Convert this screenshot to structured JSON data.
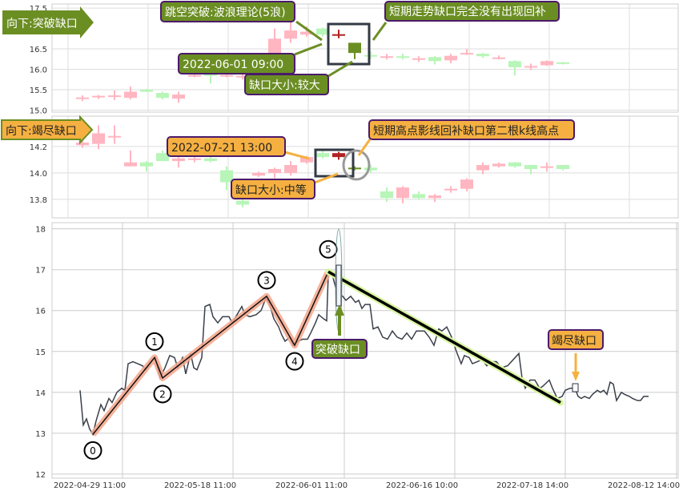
{
  "chart_data": [
    {
      "type": "candlestick",
      "panel": "top",
      "yticks": [
        "15.0",
        "15.5",
        "16.0",
        "16.5",
        "17.5"
      ],
      "ylim": [
        14.95,
        17.6
      ],
      "grid": true,
      "candles": [
        {
          "o": 15.29,
          "c": 15.31,
          "h": 15.36,
          "l": 15.22,
          "up": true
        },
        {
          "o": 15.32,
          "c": 15.35,
          "h": 15.37,
          "l": 15.27,
          "up": true
        },
        {
          "o": 15.34,
          "c": 15.36,
          "h": 15.48,
          "l": 15.25,
          "up": true
        },
        {
          "o": 15.3,
          "c": 15.45,
          "h": 15.58,
          "l": 15.26,
          "up": true
        },
        {
          "o": 15.5,
          "c": 15.45,
          "h": 15.52,
          "l": 15.44,
          "up": false
        },
        {
          "o": 15.42,
          "c": 15.3,
          "h": 15.45,
          "l": 15.26,
          "up": false
        },
        {
          "o": 15.28,
          "c": 15.38,
          "h": 15.45,
          "l": 15.18,
          "up": true
        },
        {
          "o": 15.82,
          "c": 15.86,
          "h": 15.9,
          "l": 15.8,
          "up": true
        },
        {
          "o": 15.88,
          "c": 15.84,
          "h": 15.9,
          "l": 15.65,
          "up": false
        },
        {
          "o": 15.84,
          "c": 15.86,
          "h": 15.9,
          "l": 15.8,
          "up": true
        },
        {
          "o": 15.8,
          "c": 15.84,
          "h": 15.9,
          "l": 15.75,
          "up": true
        },
        {
          "o": 15.82,
          "c": 15.86,
          "h": 15.95,
          "l": 15.8,
          "up": true
        },
        {
          "o": 16.25,
          "c": 16.75,
          "h": 17.0,
          "l": 16.2,
          "up": true
        },
        {
          "o": 16.75,
          "c": 16.95,
          "h": 17.2,
          "l": 16.65,
          "up": true
        },
        {
          "o": 16.85,
          "c": 16.92,
          "h": 17.05,
          "l": 16.8,
          "up": true
        },
        {
          "o": 17.0,
          "c": 16.85,
          "h": 17.02,
          "l": 16.8,
          "up": false
        },
        {
          "o": 16.86,
          "c": 16.84,
          "h": 16.97,
          "l": 16.76,
          "up": true,
          "gap": "gap-bar-1"
        },
        {
          "o": 16.65,
          "c": 16.4,
          "h": 16.65,
          "l": 16.25,
          "up": false,
          "gap": "gap-bar-2"
        },
        {
          "o": 16.35,
          "c": 16.34,
          "h": 16.44,
          "l": 16.25,
          "up": false
        },
        {
          "o": 16.3,
          "c": 16.32,
          "h": 16.38,
          "l": 16.24,
          "up": true
        },
        {
          "o": 16.32,
          "c": 16.3,
          "h": 16.38,
          "l": 16.24,
          "up": false
        },
        {
          "o": 16.24,
          "c": 16.27,
          "h": 16.32,
          "l": 16.18,
          "up": true
        },
        {
          "o": 16.3,
          "c": 16.2,
          "h": 16.32,
          "l": 16.12,
          "up": false
        },
        {
          "o": 16.22,
          "c": 16.33,
          "h": 16.38,
          "l": 16.15,
          "up": true
        },
        {
          "o": 16.38,
          "c": 16.4,
          "h": 16.5,
          "l": 16.35,
          "up": true
        },
        {
          "o": 16.38,
          "c": 16.32,
          "h": 16.4,
          "l": 16.28,
          "up": false
        },
        {
          "o": 16.27,
          "c": 16.29,
          "h": 16.34,
          "l": 16.24,
          "up": true
        },
        {
          "o": 16.2,
          "c": 16.05,
          "h": 16.22,
          "l": 15.85,
          "up": false
        },
        {
          "o": 16.06,
          "c": 16.08,
          "h": 16.14,
          "l": 15.98,
          "up": true
        },
        {
          "o": 16.1,
          "c": 16.2,
          "h": 16.22,
          "l": 16.08,
          "up": true
        },
        {
          "o": 16.17,
          "c": 16.13,
          "h": 16.18,
          "l": 16.12,
          "up": false
        }
      ]
    },
    {
      "type": "candlestick",
      "panel": "middle",
      "yticks": [
        "13.8",
        "14.0",
        "14.2"
      ],
      "ylim": [
        13.66,
        14.43
      ],
      "grid": true,
      "candles": [
        {
          "o": 14.21,
          "c": 14.23,
          "h": 14.25,
          "l": 14.19,
          "up": true
        },
        {
          "o": 14.22,
          "c": 14.3,
          "h": 14.36,
          "l": 14.18,
          "up": true
        },
        {
          "o": 14.27,
          "c": 14.28,
          "h": 14.36,
          "l": 14.22,
          "up": true
        },
        {
          "o": 14.05,
          "c": 14.08,
          "h": 14.17,
          "l": 14.05,
          "up": true
        },
        {
          "o": 14.08,
          "c": 14.05,
          "h": 14.09,
          "l": 14.01,
          "up": false
        },
        {
          "o": 14.15,
          "c": 14.09,
          "h": 14.17,
          "l": 14.09,
          "up": false
        },
        {
          "o": 14.09,
          "c": 14.11,
          "h": 14.12,
          "l": 14.04,
          "up": true
        },
        {
          "o": 14.1,
          "c": 14.11,
          "h": 14.13,
          "l": 14.08,
          "up": true
        },
        {
          "o": 14.11,
          "c": 14.09,
          "h": 14.12,
          "l": 14.08,
          "up": false
        },
        {
          "o": 14.02,
          "c": 13.93,
          "h": 14.05,
          "l": 13.87,
          "up": false
        },
        {
          "o": 13.79,
          "c": 13.76,
          "h": 13.8,
          "l": 13.74,
          "up": false
        },
        {
          "o": 13.98,
          "c": 14.0,
          "h": 14.01,
          "l": 13.97,
          "up": true
        },
        {
          "o": 14.0,
          "c": 14.03,
          "h": 14.04,
          "l": 13.96,
          "up": true
        },
        {
          "o": 14.0,
          "c": 14.06,
          "h": 14.09,
          "l": 13.98,
          "up": true
        },
        {
          "o": 14.08,
          "c": 14.12,
          "h": 14.13,
          "l": 14.07,
          "up": true
        },
        {
          "o": 14.15,
          "c": 14.12,
          "h": 14.17,
          "l": 14.11,
          "up": false
        },
        {
          "o": 14.12,
          "c": 14.15,
          "h": 14.16,
          "l": 14.1,
          "up": true,
          "gap": "gap-bar-1"
        },
        {
          "o": 14.04,
          "c": 14.03,
          "h": 14.05,
          "l": 14.02,
          "up": false,
          "gap": "gap-bar-2"
        },
        {
          "o": 14.04,
          "c": 14.02,
          "h": 14.06,
          "l": 14.0,
          "up": false
        },
        {
          "o": 13.86,
          "c": 13.81,
          "h": 13.89,
          "l": 13.78,
          "up": false
        },
        {
          "o": 13.81,
          "c": 13.89,
          "h": 13.9,
          "l": 13.77,
          "up": true
        },
        {
          "o": 13.84,
          "c": 13.81,
          "h": 13.86,
          "l": 13.8,
          "up": false
        },
        {
          "o": 13.81,
          "c": 13.83,
          "h": 13.84,
          "l": 13.78,
          "up": true
        },
        {
          "o": 13.87,
          "c": 13.88,
          "h": 13.9,
          "l": 13.85,
          "up": true
        },
        {
          "o": 13.88,
          "c": 13.95,
          "h": 13.96,
          "l": 13.86,
          "up": true
        },
        {
          "o": 14.02,
          "c": 14.06,
          "h": 14.08,
          "l": 13.99,
          "up": true
        },
        {
          "o": 14.05,
          "c": 14.07,
          "h": 14.08,
          "l": 14.04,
          "up": true
        },
        {
          "o": 14.08,
          "c": 14.05,
          "h": 14.08,
          "l": 14.04,
          "up": false
        },
        {
          "o": 14.06,
          "c": 14.03,
          "h": 14.06,
          "l": 13.99,
          "up": false
        },
        {
          "o": 14.04,
          "c": 14.05,
          "h": 14.08,
          "l": 14.01,
          "up": true
        },
        {
          "o": 14.06,
          "c": 14.03,
          "h": 14.06,
          "l": 14.02,
          "up": false
        }
      ]
    },
    {
      "type": "line",
      "panel": "bottom",
      "xticks": [
        "2022-04-29 11:00",
        "2022-05-18 11:00",
        "2022-06-01 11:00",
        "2022-06-16 10:00",
        "2022-07-18 14:00",
        "2022-08-12 14:00"
      ],
      "yticks": [
        "12",
        "13",
        "14",
        "15",
        "16",
        "17",
        "18"
      ],
      "ylim": [
        11.9,
        18.15
      ],
      "grid": true,
      "points": [
        [
          0,
          14.05
        ],
        [
          2,
          13.2
        ],
        [
          4,
          13.35
        ],
        [
          6,
          13.1
        ],
        [
          8,
          12.97
        ],
        [
          10,
          13.3
        ],
        [
          13,
          13.7
        ],
        [
          15,
          13.55
        ],
        [
          18,
          13.85
        ],
        [
          20,
          13.75
        ],
        [
          23,
          14.0
        ],
        [
          26,
          14.1
        ],
        [
          28,
          14.05
        ],
        [
          30,
          14.7
        ],
        [
          33,
          14.75
        ],
        [
          36,
          14.7
        ],
        [
          39,
          14.65
        ],
        [
          41,
          14.55
        ],
        [
          45,
          14.8
        ],
        [
          47,
          14.85
        ],
        [
          50,
          14.35
        ],
        [
          53,
          14.6
        ],
        [
          56,
          14.9
        ],
        [
          59,
          14.85
        ],
        [
          61,
          14.6
        ],
        [
          64,
          14.85
        ],
        [
          66,
          14.45
        ],
        [
          69,
          14.95
        ],
        [
          71,
          14.6
        ],
        [
          73,
          14.55
        ],
        [
          76,
          14.85
        ],
        [
          78,
          16.1
        ],
        [
          81,
          16.15
        ],
        [
          83,
          15.85
        ],
        [
          86,
          15.7
        ],
        [
          89,
          15.85
        ],
        [
          93,
          15.85
        ],
        [
          95,
          15.7
        ],
        [
          98,
          15.9
        ],
        [
          101,
          16.1
        ],
        [
          103,
          15.9
        ],
        [
          106,
          15.85
        ],
        [
          110,
          15.9
        ],
        [
          113,
          16.0
        ],
        [
          116,
          16.3
        ],
        [
          118,
          16.2
        ],
        [
          121,
          15.8
        ],
        [
          124,
          15.6
        ],
        [
          126,
          15.4
        ],
        [
          128,
          15.25
        ],
        [
          131,
          15.35
        ],
        [
          133,
          15.15
        ],
        [
          136,
          15.25
        ],
        [
          139,
          15.3
        ],
        [
          142,
          15.3
        ],
        [
          144,
          15.45
        ],
        [
          147,
          15.7
        ],
        [
          149,
          15.9
        ],
        [
          152,
          15.8
        ],
        [
          154,
          15.75
        ],
        [
          155,
          16.9
        ],
        [
          157,
          16.95
        ],
        [
          160,
          16.5
        ],
        [
          162,
          16.4
        ],
        [
          164,
          16.35
        ],
        [
          166,
          16.25
        ],
        [
          169,
          16.35
        ],
        [
          172,
          16.2
        ],
        [
          174,
          16.25
        ],
        [
          176,
          16.05
        ],
        [
          178,
          16.15
        ],
        [
          181,
          16.15
        ],
        [
          183,
          15.55
        ],
        [
          186,
          15.6
        ],
        [
          189,
          15.35
        ],
        [
          192,
          15.3
        ],
        [
          195,
          15.5
        ],
        [
          198,
          15.35
        ],
        [
          201,
          15.3
        ],
        [
          204,
          15.45
        ],
        [
          207,
          15.3
        ],
        [
          210,
          15.5
        ],
        [
          215,
          15.5
        ],
        [
          218,
          15.35
        ],
        [
          221,
          15.15
        ],
        [
          224,
          15.55
        ],
        [
          226,
          15.5
        ],
        [
          229,
          15.6
        ],
        [
          232,
          15.35
        ],
        [
          235,
          15.0
        ],
        [
          238,
          14.7
        ],
        [
          240,
          14.9
        ],
        [
          243,
          14.85
        ],
        [
          245,
          14.7
        ],
        [
          248,
          14.75
        ],
        [
          251,
          14.8
        ],
        [
          254,
          14.65
        ],
        [
          257,
          14.75
        ],
        [
          260,
          14.75
        ],
        [
          263,
          14.6
        ],
        [
          267,
          14.65
        ],
        [
          274,
          14.95
        ],
        [
          276,
          14.35
        ],
        [
          278,
          14.1
        ],
        [
          281,
          14.3
        ],
        [
          284,
          14.3
        ],
        [
          287,
          14.1
        ],
        [
          289,
          14.15
        ],
        [
          293,
          14.3
        ],
        [
          295,
          14.1
        ],
        [
          298,
          13.85
        ],
        [
          301,
          13.9
        ],
        [
          303,
          14.05
        ],
        [
          306,
          14.1
        ],
        [
          309,
          14.1
        ],
        [
          311,
          13.9
        ],
        [
          313,
          13.85
        ],
        [
          315,
          13.9
        ],
        [
          318,
          13.85
        ],
        [
          320,
          13.95
        ],
        [
          323,
          14.05
        ],
        [
          325,
          14.0
        ],
        [
          327,
          14.05
        ],
        [
          329,
          13.95
        ],
        [
          331,
          14.25
        ],
        [
          333,
          14.2
        ],
        [
          335,
          13.8
        ],
        [
          338,
          14.0
        ],
        [
          340,
          13.95
        ],
        [
          343,
          13.9
        ],
        [
          345,
          13.85
        ],
        [
          348,
          13.8
        ],
        [
          350,
          13.8
        ],
        [
          352,
          13.9
        ],
        [
          355,
          13.9
        ]
      ],
      "wave_points": [
        {
          "label": "0",
          "i": 8,
          "p": 12.97
        },
        {
          "label": "1",
          "i": 46.5,
          "p": 14.85
        },
        {
          "label": "2",
          "i": 51.5,
          "p": 14.35
        },
        {
          "label": "3",
          "i": 116.5,
          "p": 16.35
        },
        {
          "label": "4",
          "i": 134,
          "p": 15.15
        },
        {
          "label": "5",
          "i": 155,
          "p": 16.95
        }
      ],
      "trend_line": [
        [
          155,
          16.95
        ],
        [
          300,
          13.75
        ]
      ]
    }
  ],
  "annotations": {
    "top_direction": "向下:突破缺口",
    "top_pattern": "跳空突破:波浪理论(5浪)",
    "top_time": "2022-06-01 09:00",
    "top_size": "缺口大小:较大",
    "top_note": "短期走势缺口完全没有出现回补",
    "mid_direction": "向下:竭尽缺口",
    "mid_time": "2022-07-21 13:00",
    "mid_size": "缺口大小:中等",
    "mid_note": "短期高点影线回补缺口第二根k线高点",
    "breakaway_label": "突破缺口",
    "exhaustion_label": "竭尽缺口"
  },
  "colors": {
    "up": "#ffb6c1",
    "down": "#b8f5b8",
    "gap_up": "#b22222",
    "gap_down": "#6b8e23",
    "olive": "#6b8e23",
    "orange": "#f5b041",
    "label_border": "#4b1a6b",
    "wave": "#f4a58a",
    "trend_glow": "#d8f5a0"
  }
}
